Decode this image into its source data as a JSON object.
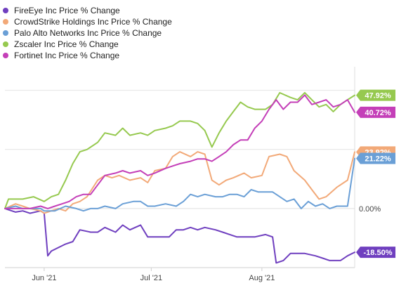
{
  "chart_data": {
    "type": "line",
    "title": "",
    "xlabel": "",
    "ylabel": "",
    "x_range": [
      "2021-05-21",
      "2021-08-27"
    ],
    "ylim": [
      -25,
      60
    ],
    "grid": "horizontal",
    "legend_position": "top-left",
    "x_ticks": [
      {
        "label": "Jun '21",
        "date": "2021-06-01"
      },
      {
        "label": "Jul '21",
        "date": "2021-07-01"
      },
      {
        "label": "Aug '21",
        "date": "2021-08-01"
      }
    ],
    "zero_label": "0.00%",
    "series": [
      {
        "name": "FireEye Inc Price % Change",
        "color": "#6f3fbf",
        "end_label": "-18.50%",
        "points": [
          [
            "2021-05-21",
            0
          ],
          [
            "2021-05-24",
            -1.5
          ],
          [
            "2021-05-26",
            -1
          ],
          [
            "2021-05-28",
            -2
          ],
          [
            "2021-05-31",
            -1
          ],
          [
            "2021-06-01",
            -2
          ],
          [
            "2021-06-02",
            -20
          ],
          [
            "2021-06-03",
            -18
          ],
          [
            "2021-06-07",
            -15
          ],
          [
            "2021-06-09",
            -14
          ],
          [
            "2021-06-11",
            -9
          ],
          [
            "2021-06-14",
            -10
          ],
          [
            "2021-06-16",
            -10
          ],
          [
            "2021-06-18",
            -8
          ],
          [
            "2021-06-21",
            -10
          ],
          [
            "2021-06-23",
            -7
          ],
          [
            "2021-06-25",
            -9
          ],
          [
            "2021-06-28",
            -7
          ],
          [
            "2021-06-30",
            -12
          ],
          [
            "2021-07-02",
            -12
          ],
          [
            "2021-07-06",
            -12
          ],
          [
            "2021-07-08",
            -9
          ],
          [
            "2021-07-10",
            -9
          ],
          [
            "2021-07-12",
            -8
          ],
          [
            "2021-07-14",
            -9
          ],
          [
            "2021-07-16",
            -8
          ],
          [
            "2021-07-19",
            -9
          ],
          [
            "2021-07-21",
            -10
          ],
          [
            "2021-07-23",
            -11
          ],
          [
            "2021-07-25",
            -12
          ],
          [
            "2021-07-28",
            -12
          ],
          [
            "2021-07-30",
            -12
          ],
          [
            "2021-08-02",
            -11
          ],
          [
            "2021-08-04",
            -12
          ],
          [
            "2021-08-05",
            -23
          ],
          [
            "2021-08-07",
            -22
          ],
          [
            "2021-08-09",
            -19
          ],
          [
            "2021-08-11",
            -19
          ],
          [
            "2021-08-13",
            -19
          ],
          [
            "2021-08-16",
            -20
          ],
          [
            "2021-08-18",
            -21
          ],
          [
            "2021-08-20",
            -22
          ],
          [
            "2021-08-23",
            -22
          ],
          [
            "2021-08-25",
            -20
          ],
          [
            "2021-08-27",
            -18.5
          ]
        ]
      },
      {
        "name": "CrowdStrike Holdings Inc Price % Change",
        "color": "#f2a978",
        "end_label": "23.92%",
        "points": [
          [
            "2021-05-21",
            0
          ],
          [
            "2021-05-24",
            2
          ],
          [
            "2021-05-26",
            1
          ],
          [
            "2021-05-28",
            0
          ],
          [
            "2021-05-31",
            -1
          ],
          [
            "2021-06-01",
            -2
          ],
          [
            "2021-06-03",
            -1
          ],
          [
            "2021-06-05",
            0
          ],
          [
            "2021-06-07",
            -1
          ],
          [
            "2021-06-09",
            2
          ],
          [
            "2021-06-11",
            3
          ],
          [
            "2021-06-13",
            5
          ],
          [
            "2021-06-16",
            12
          ],
          [
            "2021-06-18",
            14
          ],
          [
            "2021-06-20",
            13
          ],
          [
            "2021-06-22",
            14
          ],
          [
            "2021-06-25",
            12
          ],
          [
            "2021-06-28",
            13
          ],
          [
            "2021-06-30",
            11
          ],
          [
            "2021-07-02",
            16
          ],
          [
            "2021-07-05",
            17
          ],
          [
            "2021-07-07",
            22
          ],
          [
            "2021-07-09",
            24
          ],
          [
            "2021-07-12",
            22
          ],
          [
            "2021-07-14",
            24
          ],
          [
            "2021-07-16",
            23
          ],
          [
            "2021-07-18",
            12
          ],
          [
            "2021-07-20",
            10
          ],
          [
            "2021-07-22",
            12
          ],
          [
            "2021-07-24",
            13
          ],
          [
            "2021-07-27",
            15
          ],
          [
            "2021-07-29",
            13
          ],
          [
            "2021-08-01",
            14
          ],
          [
            "2021-08-03",
            22
          ],
          [
            "2021-08-06",
            23
          ],
          [
            "2021-08-08",
            22
          ],
          [
            "2021-08-10",
            16
          ],
          [
            "2021-08-13",
            12
          ],
          [
            "2021-08-15",
            8
          ],
          [
            "2021-08-17",
            4
          ],
          [
            "2021-08-19",
            5
          ],
          [
            "2021-08-22",
            9
          ],
          [
            "2021-08-25",
            12
          ],
          [
            "2021-08-27",
            23.92
          ]
        ]
      },
      {
        "name": "Palo Alto Networks Inc Price % Change",
        "color": "#6a9fd6",
        "end_label": "21.22%",
        "points": [
          [
            "2021-05-21",
            0
          ],
          [
            "2021-05-24",
            1
          ],
          [
            "2021-05-26",
            0
          ],
          [
            "2021-05-28",
            0
          ],
          [
            "2021-05-31",
            0
          ],
          [
            "2021-06-01",
            -1
          ],
          [
            "2021-06-04",
            -1
          ],
          [
            "2021-06-07",
            1
          ],
          [
            "2021-06-10",
            0
          ],
          [
            "2021-06-12",
            -1
          ],
          [
            "2021-06-14",
            0
          ],
          [
            "2021-06-16",
            0
          ],
          [
            "2021-06-18",
            1
          ],
          [
            "2021-06-21",
            0
          ],
          [
            "2021-06-23",
            2
          ],
          [
            "2021-06-26",
            3
          ],
          [
            "2021-06-28",
            3
          ],
          [
            "2021-06-30",
            1
          ],
          [
            "2021-07-02",
            1
          ],
          [
            "2021-07-05",
            2
          ],
          [
            "2021-07-08",
            1
          ],
          [
            "2021-07-10",
            3
          ],
          [
            "2021-07-12",
            6
          ],
          [
            "2021-07-14",
            5
          ],
          [
            "2021-07-16",
            6
          ],
          [
            "2021-07-19",
            5
          ],
          [
            "2021-07-21",
            5
          ],
          [
            "2021-07-23",
            6
          ],
          [
            "2021-07-25",
            6
          ],
          [
            "2021-07-27",
            5
          ],
          [
            "2021-07-29",
            8
          ],
          [
            "2021-07-31",
            7
          ],
          [
            "2021-08-02",
            7
          ],
          [
            "2021-08-04",
            7
          ],
          [
            "2021-08-06",
            5
          ],
          [
            "2021-08-08",
            3
          ],
          [
            "2021-08-10",
            4
          ],
          [
            "2021-08-12",
            0
          ],
          [
            "2021-08-14",
            3
          ],
          [
            "2021-08-16",
            1
          ],
          [
            "2021-08-18",
            2
          ],
          [
            "2021-08-20",
            0
          ],
          [
            "2021-08-22",
            1
          ],
          [
            "2021-08-25",
            1
          ],
          [
            "2021-08-27",
            21.22
          ]
        ]
      },
      {
        "name": "Zscaler Inc Price % Change",
        "color": "#96c94f",
        "end_label": "47.92%",
        "points": [
          [
            "2021-05-21",
            0
          ],
          [
            "2021-05-22",
            4
          ],
          [
            "2021-05-24",
            4
          ],
          [
            "2021-05-26",
            4
          ],
          [
            "2021-05-29",
            5
          ],
          [
            "2021-06-01",
            3
          ],
          [
            "2021-06-03",
            5
          ],
          [
            "2021-06-05",
            6
          ],
          [
            "2021-06-07",
            12
          ],
          [
            "2021-06-09",
            19
          ],
          [
            "2021-06-11",
            24
          ],
          [
            "2021-06-13",
            25
          ],
          [
            "2021-06-16",
            28
          ],
          [
            "2021-06-18",
            32
          ],
          [
            "2021-06-21",
            31
          ],
          [
            "2021-06-23",
            34
          ],
          [
            "2021-06-25",
            31
          ],
          [
            "2021-06-28",
            32
          ],
          [
            "2021-06-30",
            31
          ],
          [
            "2021-07-02",
            33
          ],
          [
            "2021-07-05",
            34
          ],
          [
            "2021-07-07",
            35
          ],
          [
            "2021-07-09",
            37
          ],
          [
            "2021-07-12",
            37
          ],
          [
            "2021-07-14",
            36
          ],
          [
            "2021-07-16",
            33
          ],
          [
            "2021-07-18",
            26
          ],
          [
            "2021-07-20",
            32
          ],
          [
            "2021-07-22",
            37
          ],
          [
            "2021-07-24",
            41
          ],
          [
            "2021-07-26",
            45
          ],
          [
            "2021-07-28",
            43
          ],
          [
            "2021-07-30",
            42
          ],
          [
            "2021-08-02",
            42
          ],
          [
            "2021-08-04",
            44
          ],
          [
            "2021-08-06",
            49
          ],
          [
            "2021-08-09",
            47
          ],
          [
            "2021-08-11",
            46
          ],
          [
            "2021-08-13",
            49
          ],
          [
            "2021-08-15",
            46
          ],
          [
            "2021-08-17",
            43
          ],
          [
            "2021-08-19",
            44
          ],
          [
            "2021-08-21",
            41
          ],
          [
            "2021-08-23",
            44
          ],
          [
            "2021-08-25",
            46
          ],
          [
            "2021-08-27",
            47.92
          ]
        ]
      },
      {
        "name": "Fortinet Inc Price % Change",
        "color": "#c43fb8",
        "end_label": "40.72%",
        "points": [
          [
            "2021-05-21",
            0
          ],
          [
            "2021-05-24",
            0
          ],
          [
            "2021-05-26",
            0
          ],
          [
            "2021-05-28",
            0
          ],
          [
            "2021-05-31",
            1
          ],
          [
            "2021-06-02",
            0
          ],
          [
            "2021-06-04",
            1
          ],
          [
            "2021-06-06",
            2
          ],
          [
            "2021-06-08",
            3
          ],
          [
            "2021-06-10",
            5
          ],
          [
            "2021-06-12",
            6
          ],
          [
            "2021-06-14",
            6
          ],
          [
            "2021-06-16",
            10
          ],
          [
            "2021-06-18",
            14
          ],
          [
            "2021-06-21",
            15
          ],
          [
            "2021-06-23",
            16
          ],
          [
            "2021-06-25",
            15
          ],
          [
            "2021-06-28",
            16
          ],
          [
            "2021-06-30",
            14
          ],
          [
            "2021-07-02",
            15
          ],
          [
            "2021-07-05",
            17
          ],
          [
            "2021-07-07",
            18
          ],
          [
            "2021-07-09",
            19
          ],
          [
            "2021-07-12",
            20
          ],
          [
            "2021-07-14",
            21
          ],
          [
            "2021-07-16",
            21
          ],
          [
            "2021-07-18",
            20
          ],
          [
            "2021-07-20",
            22
          ],
          [
            "2021-07-22",
            24
          ],
          [
            "2021-07-24",
            27
          ],
          [
            "2021-07-26",
            29
          ],
          [
            "2021-07-28",
            29
          ],
          [
            "2021-07-30",
            34
          ],
          [
            "2021-08-01",
            37
          ],
          [
            "2021-08-03",
            42
          ],
          [
            "2021-08-05",
            46
          ],
          [
            "2021-08-07",
            42
          ],
          [
            "2021-08-09",
            45
          ],
          [
            "2021-08-11",
            45
          ],
          [
            "2021-08-13",
            48
          ],
          [
            "2021-08-15",
            44
          ],
          [
            "2021-08-17",
            45
          ],
          [
            "2021-08-19",
            46
          ],
          [
            "2021-08-21",
            43
          ],
          [
            "2021-08-23",
            44
          ],
          [
            "2021-08-25",
            46
          ],
          [
            "2021-08-27",
            40.72
          ]
        ]
      }
    ]
  }
}
